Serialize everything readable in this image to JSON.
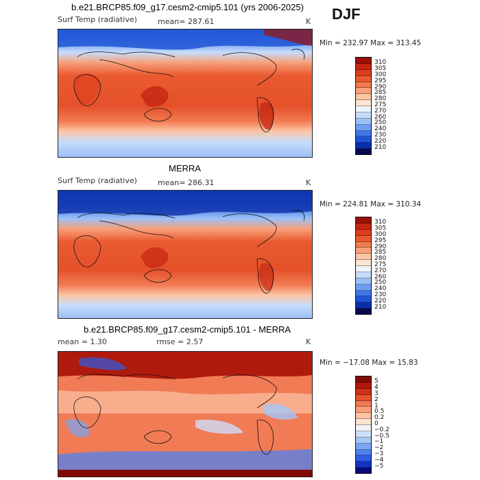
{
  "season": "DJF",
  "palette": {
    "abs": [
      "#08084e",
      "#0a2ea8",
      "#1f55d6",
      "#3d77e8",
      "#6d9ef0",
      "#9cc0f6",
      "#c6dcfb",
      "#eef4fd",
      "#fde4d3",
      "#fbc6a6",
      "#f7a07a",
      "#f27b52",
      "#ea5a31",
      "#dc3d1b",
      "#c42612",
      "#9c1008"
    ],
    "diff": [
      "#0a0a7a",
      "#1433c2",
      "#2e5ce6",
      "#4f80f0",
      "#7ba6f4",
      "#a6c6f8",
      "#cfdffb",
      "#eef3fb",
      "#fde2d0",
      "#fbc3a4",
      "#f7a07c",
      "#f07b55",
      "#e45432",
      "#cf311a",
      "#b01a0c",
      "#830b06"
    ]
  },
  "panels": [
    {
      "id": "model",
      "title": "b.e21.BRCP85.f09_g17.cesm2-cmip5.101 (yrs 2006-2025)",
      "variable": "Surf Temp (radiative)",
      "mean": "mean=  287.61",
      "units": "K",
      "minmax": "Min = 232.97  Max = 313.45",
      "colorbar_labels": [
        "310",
        "305",
        "300",
        "295",
        "290",
        "285",
        "280",
        "275",
        "270",
        "260",
        "250",
        "240",
        "230",
        "220",
        "210"
      ]
    },
    {
      "id": "obs",
      "title": "MERRA",
      "variable": "Surf Temp (radiative)",
      "mean": "mean=  286.31",
      "units": "K",
      "minmax": "Min = 224.81  Max = 310.34",
      "colorbar_labels": [
        "310",
        "305",
        "300",
        "295",
        "290",
        "285",
        "280",
        "275",
        "270",
        "260",
        "250",
        "240",
        "230",
        "220",
        "210"
      ]
    },
    {
      "id": "diff",
      "title": "b.e21.BRCP85.f09_g17.cesm2-cmip5.101 - MERRA",
      "mean": "mean =     1.30",
      "rmse": "rmse =     2.57",
      "units": "K",
      "minmax": "Min = −17.08  Max =   15.83",
      "colorbar_labels": [
        "5",
        "4",
        "3",
        "2",
        "1",
        "0.5",
        "0.2",
        "0",
        "−0.2",
        "−0.5",
        "−1",
        "−2",
        "−3",
        "−4",
        "−5"
      ]
    }
  ]
}
